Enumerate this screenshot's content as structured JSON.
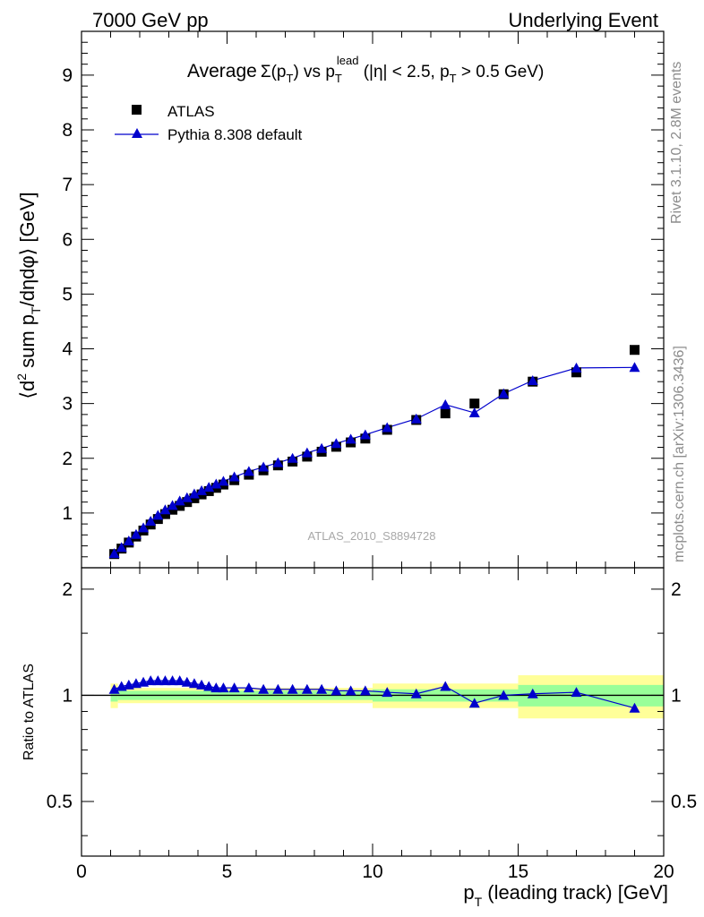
{
  "header": {
    "left": "7000 GeV pp",
    "right": "Underlying Event"
  },
  "side_labels": {
    "rivet": "Rivet 3.1.10,  2.8M events",
    "mcplots": "mcplots.cern.ch [arXiv:1306.3436]"
  },
  "chart_data": [
    {
      "type": "scatter",
      "panel": "main",
      "title_parts": {
        "average": "Average",
        "sigma": "Σ(p",
        "sigma_sub": "T",
        "vs": ") vs p",
        "lead_sub": "T",
        "lead_sup": "lead",
        "cut": " (|η| < 2.5, p",
        "cut_sub": "T",
        "cut_end": " > 0.5 GeV)"
      },
      "ylabel_parts": {
        "a": "⟨d",
        "sup": "2",
        "b": " sum p",
        "sub": "T",
        "c": "/dηdφ⟩ [GeV]"
      },
      "xlim": [
        0,
        20
      ],
      "ylim": [
        0,
        9.8
      ],
      "yticks": [
        "1",
        "2",
        "3",
        "4",
        "5",
        "6",
        "7",
        "8",
        "9"
      ],
      "grid": false,
      "legend_position": "top-left",
      "analysis_label": "ATLAS_2010_S8894728",
      "series": [
        {
          "name": "ATLAS",
          "marker": "square",
          "color": "#000000",
          "points": [
            [
              1.125,
              0.25
            ],
            [
              1.375,
              0.35
            ],
            [
              1.625,
              0.46
            ],
            [
              1.875,
              0.57
            ],
            [
              2.125,
              0.68
            ],
            [
              2.375,
              0.79
            ],
            [
              2.625,
              0.89
            ],
            [
              2.875,
              0.98
            ],
            [
              3.125,
              1.06
            ],
            [
              3.375,
              1.13
            ],
            [
              3.625,
              1.2
            ],
            [
              3.875,
              1.27
            ],
            [
              4.125,
              1.34
            ],
            [
              4.375,
              1.4
            ],
            [
              4.625,
              1.46
            ],
            [
              4.875,
              1.52
            ],
            [
              5.25,
              1.6
            ],
            [
              5.75,
              1.7
            ],
            [
              6.25,
              1.78
            ],
            [
              6.75,
              1.87
            ],
            [
              7.25,
              1.94
            ],
            [
              7.75,
              2.03
            ],
            [
              8.25,
              2.12
            ],
            [
              8.75,
              2.21
            ],
            [
              9.25,
              2.29
            ],
            [
              9.75,
              2.36
            ],
            [
              10.5,
              2.52
            ],
            [
              11.5,
              2.7
            ],
            [
              12.5,
              2.82
            ],
            [
              13.5,
              3.0
            ],
            [
              14.5,
              3.17
            ],
            [
              15.5,
              3.4
            ],
            [
              17.0,
              3.57
            ],
            [
              19.0,
              3.98
            ]
          ]
        },
        {
          "name": "Pythia 8.308 default",
          "marker": "triangle",
          "color": "#0000cc",
          "points": [
            [
              1.125,
              0.26
            ],
            [
              1.375,
              0.37
            ],
            [
              1.625,
              0.49
            ],
            [
              1.875,
              0.61
            ],
            [
              2.125,
              0.73
            ],
            [
              2.375,
              0.85
            ],
            [
              2.625,
              0.96
            ],
            [
              2.875,
              1.06
            ],
            [
              3.125,
              1.14
            ],
            [
              3.375,
              1.22
            ],
            [
              3.625,
              1.28
            ],
            [
              3.875,
              1.35
            ],
            [
              4.125,
              1.41
            ],
            [
              4.375,
              1.47
            ],
            [
              4.625,
              1.53
            ],
            [
              4.875,
              1.58
            ],
            [
              5.25,
              1.66
            ],
            [
              5.75,
              1.76
            ],
            [
              6.25,
              1.84
            ],
            [
              6.75,
              1.92
            ],
            [
              7.25,
              2.0
            ],
            [
              7.75,
              2.1
            ],
            [
              8.25,
              2.18
            ],
            [
              8.75,
              2.27
            ],
            [
              9.25,
              2.35
            ],
            [
              9.75,
              2.43
            ],
            [
              10.5,
              2.56
            ],
            [
              11.5,
              2.72
            ],
            [
              12.5,
              2.98
            ],
            [
              13.5,
              2.83
            ],
            [
              14.5,
              3.18
            ],
            [
              15.5,
              3.42
            ],
            [
              17.0,
              3.65
            ],
            [
              19.0,
              3.66
            ]
          ]
        }
      ]
    },
    {
      "type": "scatter",
      "panel": "ratio",
      "ylabel": "Ratio to ATLAS",
      "xlabel_parts": {
        "a": "p",
        "sub": "T",
        "b": " (leading track) [GeV]"
      },
      "xlim": [
        0,
        20
      ],
      "ylim": [
        0.35,
        2.3
      ],
      "yticks": [
        "0.5",
        "1",
        "2"
      ],
      "xticks": [
        "0",
        "5",
        "10",
        "15",
        "20"
      ],
      "colors": {
        "band_inner": "#99ff99",
        "band_outer": "#ffff99",
        "line": "#0000cc"
      },
      "bands": [
        {
          "x0": 1.0,
          "x1": 1.25,
          "inner": [
            0.96,
            1.04
          ],
          "outer": [
            0.92,
            1.08
          ]
        },
        {
          "x0": 1.25,
          "x1": 10.0,
          "inner": [
            0.97,
            1.03
          ],
          "outer": [
            0.95,
            1.05
          ]
        },
        {
          "x0": 10.0,
          "x1": 15.0,
          "inner": [
            0.96,
            1.04
          ],
          "outer": [
            0.92,
            1.08
          ]
        },
        {
          "x0": 15.0,
          "x1": 20.0,
          "inner": [
            0.93,
            1.07
          ],
          "outer": [
            0.86,
            1.14
          ]
        }
      ],
      "series": [
        {
          "name": "Pythia 8.308 default",
          "points": [
            [
              1.125,
              1.04
            ],
            [
              1.375,
              1.06
            ],
            [
              1.625,
              1.07
            ],
            [
              1.875,
              1.08
            ],
            [
              2.125,
              1.09
            ],
            [
              2.375,
              1.1
            ],
            [
              2.625,
              1.1
            ],
            [
              2.875,
              1.1
            ],
            [
              3.125,
              1.1
            ],
            [
              3.375,
              1.1
            ],
            [
              3.625,
              1.09
            ],
            [
              3.875,
              1.08
            ],
            [
              4.125,
              1.07
            ],
            [
              4.375,
              1.06
            ],
            [
              4.625,
              1.05
            ],
            [
              4.875,
              1.05
            ],
            [
              5.25,
              1.05
            ],
            [
              5.75,
              1.05
            ],
            [
              6.25,
              1.04
            ],
            [
              6.75,
              1.04
            ],
            [
              7.25,
              1.04
            ],
            [
              7.75,
              1.04
            ],
            [
              8.25,
              1.04
            ],
            [
              8.75,
              1.03
            ],
            [
              9.25,
              1.03
            ],
            [
              9.75,
              1.03
            ],
            [
              10.5,
              1.02
            ],
            [
              11.5,
              1.01
            ],
            [
              12.5,
              1.06
            ],
            [
              13.5,
              0.95
            ],
            [
              14.5,
              1.0
            ],
            [
              15.5,
              1.01
            ],
            [
              17.0,
              1.02
            ],
            [
              19.0,
              0.92
            ]
          ]
        }
      ]
    }
  ]
}
